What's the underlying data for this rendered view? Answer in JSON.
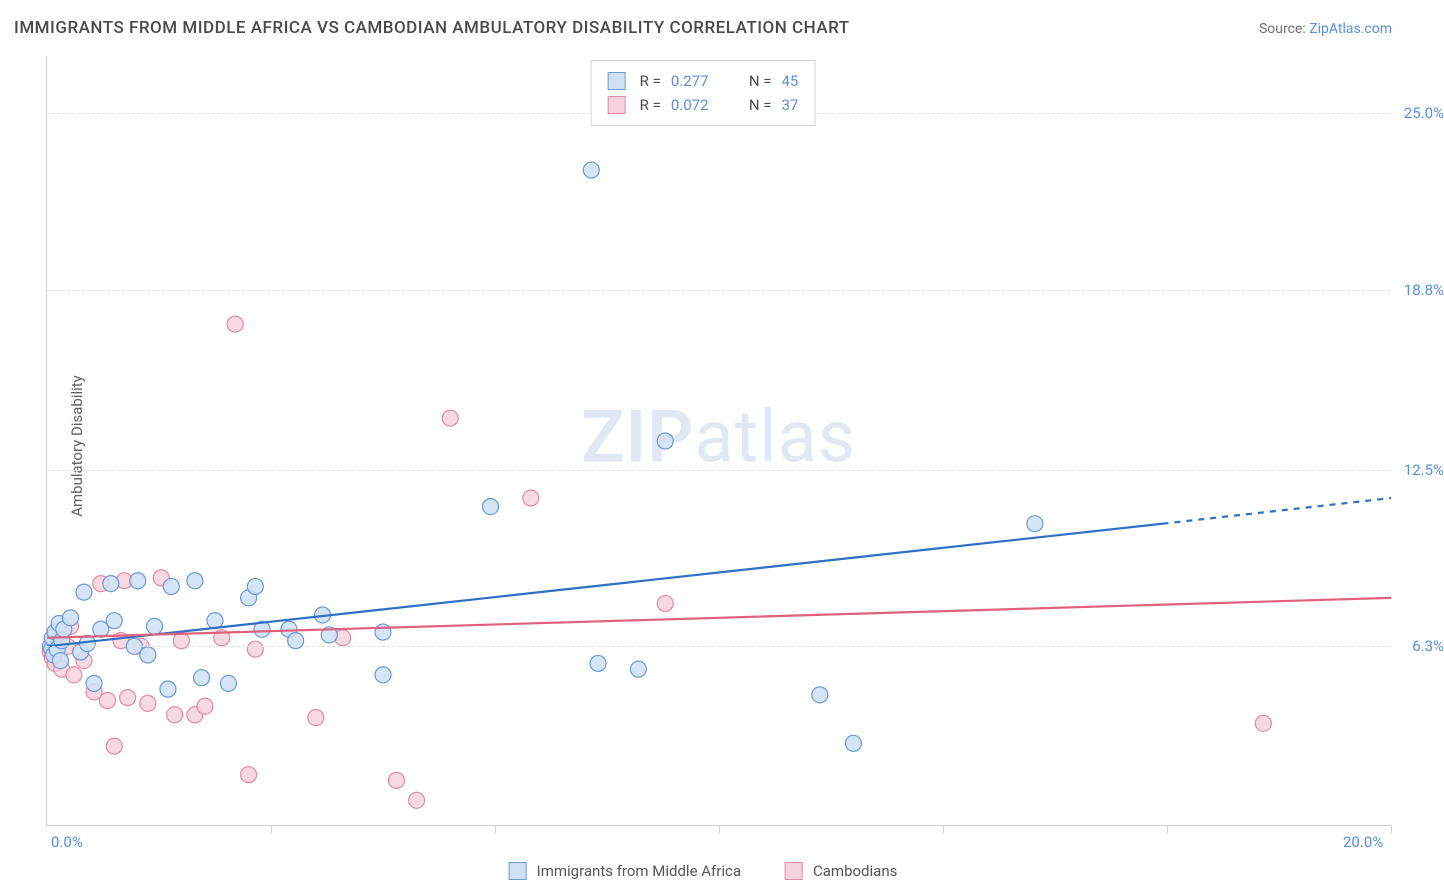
{
  "title": "IMMIGRANTS FROM MIDDLE AFRICA VS CAMBODIAN AMBULATORY DISABILITY CORRELATION CHART",
  "source_prefix": "Source: ",
  "source_name": "ZipAtlas.com",
  "y_axis_label": "Ambulatory Disability",
  "watermark_zip": "ZIP",
  "watermark_atlas": "atlas",
  "chart": {
    "type": "scatter",
    "background_color": "#ffffff",
    "grid_color": "#e2e2e2",
    "axis_color": "#cfcfcf",
    "x_min": 0.0,
    "x_max": 20.0,
    "y_min": 0.0,
    "y_max": 27.0,
    "x_tick_labels": [
      {
        "v": 0.0,
        "label": "0.0%"
      },
      {
        "v": 20.0,
        "label": "20.0%"
      }
    ],
    "x_tick_marks": [
      3.33,
      6.67,
      10.0,
      13.33,
      16.67,
      20.0
    ],
    "y_tick_labels": [
      {
        "v": 6.3,
        "label": "6.3%"
      },
      {
        "v": 12.5,
        "label": "12.5%"
      },
      {
        "v": 18.8,
        "label": "18.8%"
      },
      {
        "v": 25.0,
        "label": "25.0%"
      }
    ],
    "marker_radius": 8,
    "marker_stroke_width": 1.2,
    "trend_line_width": 2.2,
    "label_fontsize": 15,
    "title_fontsize": 17,
    "tick_label_color": "#5b8fd6",
    "series": [
      {
        "key": "blue",
        "legend_label": "Immigrants from Middle Africa",
        "fill": "#cfe0f4",
        "stroke": "#6a9ad4",
        "line_color": "#2f6fc4",
        "r_value": "0.277",
        "n_value": "45",
        "trend": {
          "x1": 0.0,
          "y1": 6.3,
          "x2": 16.6,
          "y2": 10.6,
          "x3": 20.0,
          "y3": 11.5
        },
        "points": [
          [
            0.05,
            6.3
          ],
          [
            0.07,
            6.2
          ],
          [
            0.08,
            6.6
          ],
          [
            0.1,
            6.0
          ],
          [
            0.12,
            6.8
          ],
          [
            0.15,
            6.2
          ],
          [
            0.18,
            7.1
          ],
          [
            0.2,
            5.8
          ],
          [
            0.22,
            6.5
          ],
          [
            0.25,
            6.9
          ],
          [
            0.35,
            7.3
          ],
          [
            0.5,
            6.1
          ],
          [
            0.55,
            8.2
          ],
          [
            0.6,
            6.4
          ],
          [
            0.7,
            5.0
          ],
          [
            0.8,
            6.9
          ],
          [
            0.95,
            8.5
          ],
          [
            1.0,
            7.2
          ],
          [
            1.3,
            6.3
          ],
          [
            1.35,
            8.6
          ],
          [
            1.5,
            6.0
          ],
          [
            1.6,
            7.0
          ],
          [
            1.8,
            4.8
          ],
          [
            1.85,
            8.4
          ],
          [
            2.2,
            8.6
          ],
          [
            2.3,
            5.2
          ],
          [
            2.5,
            7.2
          ],
          [
            2.7,
            5.0
          ],
          [
            3.0,
            8.0
          ],
          [
            3.1,
            8.4
          ],
          [
            3.2,
            6.9
          ],
          [
            3.6,
            6.9
          ],
          [
            3.7,
            6.5
          ],
          [
            4.1,
            7.4
          ],
          [
            4.2,
            6.7
          ],
          [
            5.0,
            5.3
          ],
          [
            5.0,
            6.8
          ],
          [
            6.6,
            11.2
          ],
          [
            8.2,
            5.7
          ],
          [
            8.1,
            23.0
          ],
          [
            8.8,
            5.5
          ],
          [
            9.2,
            13.5
          ],
          [
            11.5,
            4.6
          ],
          [
            12.0,
            2.9
          ],
          [
            14.7,
            10.6
          ]
        ]
      },
      {
        "key": "pink",
        "legend_label": "Cambodians",
        "fill": "#f6d3dc",
        "stroke": "#e18ca4",
        "line_color": "#e0607f",
        "r_value": "0.072",
        "n_value": "37",
        "trend": {
          "x1": 0.0,
          "y1": 6.6,
          "x2": 20.0,
          "y2": 8.0,
          "x3": 20.0,
          "y3": 8.0
        },
        "points": [
          [
            0.05,
            6.1
          ],
          [
            0.08,
            5.9
          ],
          [
            0.1,
            6.4
          ],
          [
            0.12,
            5.7
          ],
          [
            0.14,
            6.2
          ],
          [
            0.18,
            6.0
          ],
          [
            0.22,
            5.5
          ],
          [
            0.3,
            6.3
          ],
          [
            0.35,
            7.0
          ],
          [
            0.4,
            5.3
          ],
          [
            0.55,
            5.8
          ],
          [
            0.7,
            4.7
          ],
          [
            0.8,
            8.5
          ],
          [
            0.9,
            4.4
          ],
          [
            1.0,
            2.8
          ],
          [
            1.1,
            6.5
          ],
          [
            1.15,
            8.6
          ],
          [
            1.2,
            4.5
          ],
          [
            1.4,
            6.3
          ],
          [
            1.5,
            4.3
          ],
          [
            1.7,
            8.7
          ],
          [
            1.9,
            3.9
          ],
          [
            2.0,
            6.5
          ],
          [
            2.2,
            3.9
          ],
          [
            2.35,
            4.2
          ],
          [
            2.6,
            6.6
          ],
          [
            2.8,
            17.6
          ],
          [
            3.0,
            1.8
          ],
          [
            3.1,
            6.2
          ],
          [
            4.0,
            3.8
          ],
          [
            4.4,
            6.6
          ],
          [
            5.2,
            1.6
          ],
          [
            5.5,
            0.9
          ],
          [
            6.0,
            14.3
          ],
          [
            7.2,
            11.5
          ],
          [
            9.2,
            7.8
          ],
          [
            18.1,
            3.6
          ]
        ]
      }
    ]
  },
  "legend_top_rows": [
    {
      "series": "blue",
      "r_label": "R =",
      "n_label": "N ="
    },
    {
      "series": "pink",
      "r_label": "R =",
      "n_label": "N ="
    }
  ]
}
